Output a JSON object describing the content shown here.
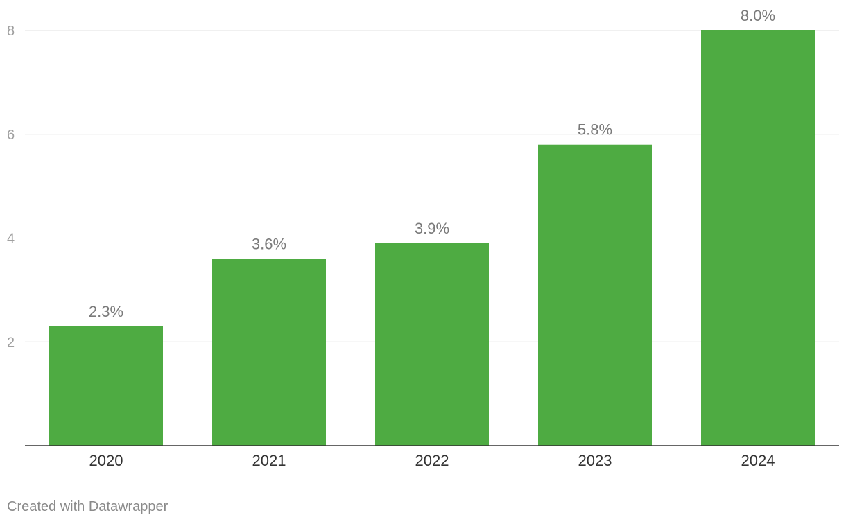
{
  "chart_data": {
    "type": "bar",
    "categories": [
      "2020",
      "2021",
      "2022",
      "2023",
      "2024"
    ],
    "values": [
      2.3,
      3.6,
      3.9,
      5.8,
      8.0
    ],
    "value_labels": [
      "2.3%",
      "3.6%",
      "3.9%",
      "5.8%",
      "8.0%"
    ],
    "title": "",
    "xlabel": "",
    "ylabel": "",
    "ylim": [
      0,
      8
    ],
    "yticks": [
      2,
      4,
      6,
      8
    ],
    "grid": true,
    "colors": {
      "bar": "#4eab42",
      "grid": "#e0e0e0",
      "baseline": "#333333",
      "tick_label": "#a0a0a0",
      "value_label": "#7a7a7a",
      "category_label": "#333333"
    }
  },
  "footer": {
    "credit": "Created with Datawrapper"
  }
}
